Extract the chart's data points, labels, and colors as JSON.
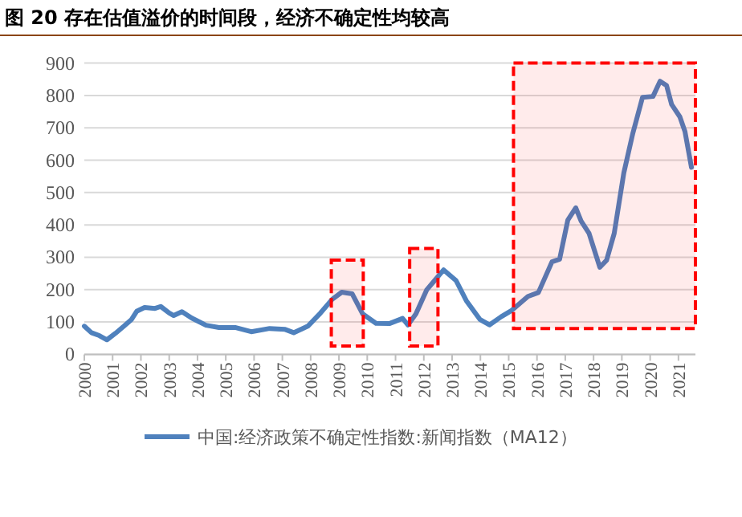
{
  "chart_data": {
    "type": "line",
    "title": "图 20 存在估值溢价的时间段，经济不确定性均较高",
    "x": [
      2000.0,
      2000.25,
      2000.53,
      2000.8,
      2001.1,
      2001.4,
      2001.66,
      2001.85,
      2002.13,
      2002.5,
      2002.7,
      2003.0,
      2003.16,
      2003.45,
      2003.8,
      2004.3,
      2004.76,
      2005.33,
      2005.9,
      2006.55,
      2007.1,
      2007.4,
      2007.9,
      2008.35,
      2008.76,
      2009.1,
      2009.47,
      2009.84,
      2010.31,
      2010.78,
      2011.25,
      2011.44,
      2011.72,
      2012.1,
      2012.38,
      2012.7,
      2013.14,
      2013.5,
      2013.98,
      2014.32,
      2014.73,
      2015.11,
      2015.68,
      2016.05,
      2016.53,
      2016.8,
      2017.09,
      2017.37,
      2017.56,
      2017.84,
      2018.22,
      2018.46,
      2018.73,
      2019.07,
      2019.39,
      2019.73,
      2020.1,
      2020.35,
      2020.58,
      2020.76,
      2021.05,
      2021.23,
      2021.46
    ],
    "series": [
      {
        "name": "中国:经济政策不确定性指数:新闻指数（MA12）",
        "color": "#4f81bd",
        "values": [
          87,
          67,
          58,
          45,
          65,
          87,
          107,
          133,
          145,
          142,
          148,
          128,
          120,
          132,
          112,
          90,
          83,
          83,
          70,
          80,
          77,
          67,
          87,
          128,
          170,
          192,
          187,
          125,
          96,
          95,
          111,
          91,
          125,
          199,
          228,
          261,
          228,
          166,
          108,
          91,
          116,
          136,
          179,
          191,
          286,
          294,
          415,
          453,
          412,
          374,
          269,
          291,
          374,
          561,
          684,
          794,
          797,
          844,
          831,
          772,
          734,
          689,
          578
        ]
      }
    ],
    "xlim": [
      2000,
      2021.6
    ],
    "xticks": [
      2000,
      2001,
      2002,
      2003,
      2004,
      2005,
      2006,
      2007,
      2008,
      2009,
      2010,
      2011,
      2012,
      2013,
      2014,
      2015,
      2016,
      2017,
      2018,
      2019,
      2020,
      2021
    ],
    "ylim": [
      0,
      900
    ],
    "yticks": [
      0,
      100,
      200,
      300,
      400,
      500,
      600,
      700,
      800,
      900
    ],
    "grid": "y",
    "legend": "bottom",
    "bands": [
      {
        "axis": "x",
        "from": 2008.73,
        "to": 2009.86,
        "color": "#ff0000"
      },
      {
        "axis": "x",
        "from": 2011.5,
        "to": 2012.5,
        "color": "#ff0000"
      },
      {
        "axis": "x",
        "from": 2015.17,
        "to": 2021.6,
        "color": "#ff0000"
      }
    ]
  }
}
